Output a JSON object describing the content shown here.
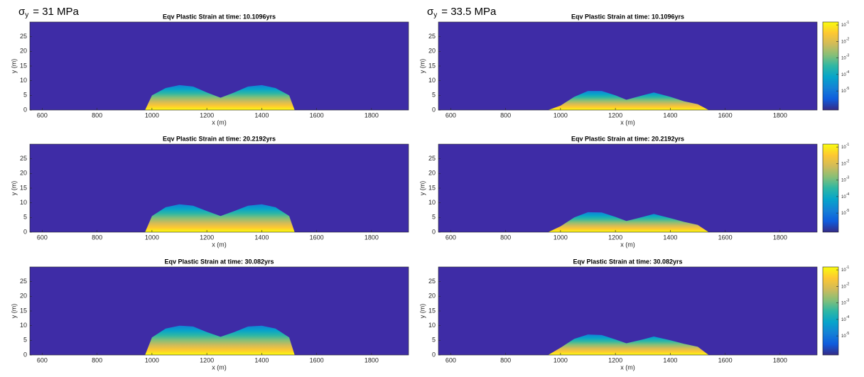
{
  "chart_data": [
    {
      "type": "area",
      "annotation": {
        "symbol": "σ",
        "subscript": "y",
        "text": "= 31 MPa"
      },
      "title": "Eqv Plastic Strain at time: 10.1096yrs",
      "xlabel": "x (m)",
      "ylabel": "y (m)",
      "x": [
        975,
        1000,
        1050,
        1100,
        1150,
        1200,
        1250,
        1300,
        1350,
        1400,
        1450,
        1500,
        1520
      ],
      "values": [
        0,
        5,
        7.5,
        8.5,
        8,
        6,
        4.2,
        6,
        8,
        8.5,
        7.5,
        5,
        0
      ],
      "xlim": [
        555,
        1935
      ],
      "ylim": [
        0,
        30
      ],
      "xticks": [
        600,
        800,
        1000,
        1200,
        1400,
        1600,
        1800
      ],
      "yticks": [
        0,
        5,
        10,
        15,
        20,
        25
      ]
    },
    {
      "type": "area",
      "annotation": {
        "symbol": "σ",
        "subscript": "y",
        "text": "= 33.5 MPa"
      },
      "title": "Eqv Plastic Strain at time: 10.1096yrs",
      "xlabel": "x (m)",
      "ylabel": "y (m)",
      "x": [
        955,
        1000,
        1050,
        1100,
        1150,
        1200,
        1240,
        1300,
        1340,
        1400,
        1450,
        1500,
        1540
      ],
      "values": [
        0,
        1.5,
        4.5,
        6.5,
        6.5,
        5,
        3.5,
        5,
        6,
        4.5,
        3,
        2,
        0
      ],
      "xlim": [
        555,
        1935
      ],
      "ylim": [
        0,
        30
      ],
      "xticks": [
        600,
        800,
        1000,
        1200,
        1400,
        1600,
        1800
      ],
      "yticks": [
        0,
        5,
        10,
        15,
        20,
        25
      ],
      "clim": [
        7e-07,
        0.15
      ],
      "cticks": [
        {
          "value": 0.1,
          "label": "10",
          "exponent": "-1"
        },
        {
          "value": 0.01,
          "label": "10",
          "exponent": "-2"
        },
        {
          "value": 0.001,
          "label": "10",
          "exponent": "-3"
        },
        {
          "value": 0.0001,
          "label": "10",
          "exponent": "-4"
        },
        {
          "value": 1e-05,
          "label": "10",
          "exponent": "-5"
        }
      ]
    },
    {
      "type": "area",
      "title": "Eqv Plastic Strain at time: 20.2192yrs",
      "xlabel": "x (m)",
      "ylabel": "y (m)",
      "x": [
        975,
        1000,
        1050,
        1100,
        1150,
        1200,
        1250,
        1300,
        1350,
        1400,
        1450,
        1500,
        1520
      ],
      "values": [
        0,
        5.5,
        8.5,
        9.5,
        9,
        7.2,
        5.5,
        7.2,
        9,
        9.5,
        8.5,
        5.5,
        0
      ],
      "xlim": [
        555,
        1935
      ],
      "ylim": [
        0,
        30
      ],
      "xticks": [
        600,
        800,
        1000,
        1200,
        1400,
        1600,
        1800
      ],
      "yticks": [
        0,
        5,
        10,
        15,
        20,
        25
      ]
    },
    {
      "type": "area",
      "title": "Eqv Plastic Strain at time: 20.2192yrs",
      "xlabel": "x (m)",
      "ylabel": "y (m)",
      "x": [
        955,
        1000,
        1050,
        1100,
        1150,
        1200,
        1240,
        1300,
        1340,
        1400,
        1450,
        1500,
        1540
      ],
      "values": [
        0,
        2,
        5,
        6.8,
        6.7,
        5.2,
        3.8,
        5.2,
        6.2,
        4.8,
        3.5,
        2.5,
        0
      ],
      "xlim": [
        555,
        1935
      ],
      "ylim": [
        0,
        30
      ],
      "xticks": [
        600,
        800,
        1000,
        1200,
        1400,
        1600,
        1800
      ],
      "yticks": [
        0,
        5,
        10,
        15,
        20,
        25
      ],
      "clim": [
        7e-07,
        0.15
      ],
      "cticks": [
        {
          "value": 0.1,
          "label": "10",
          "exponent": "-1"
        },
        {
          "value": 0.01,
          "label": "10",
          "exponent": "-2"
        },
        {
          "value": 0.001,
          "label": "10",
          "exponent": "-3"
        },
        {
          "value": 0.0001,
          "label": "10",
          "exponent": "-4"
        },
        {
          "value": 1e-05,
          "label": "10",
          "exponent": "-5"
        }
      ]
    },
    {
      "type": "area",
      "title": "Eqv Plastic Strain at time: 30.082yrs",
      "xlabel": "x (m)",
      "ylabel": "y (m)",
      "x": [
        975,
        1000,
        1050,
        1100,
        1150,
        1200,
        1250,
        1300,
        1350,
        1400,
        1450,
        1500,
        1520
      ],
      "values": [
        0,
        6,
        9,
        10,
        9.7,
        7.8,
        6.2,
        7.8,
        9.7,
        10,
        9,
        6,
        0
      ],
      "xlim": [
        555,
        1935
      ],
      "ylim": [
        0,
        30
      ],
      "xticks": [
        600,
        800,
        1000,
        1200,
        1400,
        1600,
        1800
      ],
      "yticks": [
        0,
        5,
        10,
        15,
        20,
        25
      ]
    },
    {
      "type": "area",
      "title": "Eqv Plastic Strain at time: 30.082yrs",
      "xlabel": "x (m)",
      "ylabel": "y (m)",
      "x": [
        955,
        1000,
        1050,
        1100,
        1150,
        1200,
        1240,
        1300,
        1340,
        1400,
        1450,
        1500,
        1540
      ],
      "values": [
        0,
        2.5,
        5.5,
        7,
        6.8,
        5.3,
        4,
        5.3,
        6.3,
        5,
        3.8,
        2.8,
        0
      ],
      "xlim": [
        555,
        1935
      ],
      "ylim": [
        0,
        30
      ],
      "xticks": [
        600,
        800,
        1000,
        1200,
        1400,
        1600,
        1800
      ],
      "yticks": [
        0,
        5,
        10,
        15,
        20,
        25
      ],
      "clim": [
        7e-07,
        0.15
      ],
      "cticks": [
        {
          "value": 0.1,
          "label": "10",
          "exponent": "-1"
        },
        {
          "value": 0.01,
          "label": "10",
          "exponent": "-2"
        },
        {
          "value": 0.001,
          "label": "10",
          "exponent": "-3"
        },
        {
          "value": 0.0001,
          "label": "10",
          "exponent": "-4"
        },
        {
          "value": 1e-05,
          "label": "10",
          "exponent": "-5"
        }
      ]
    }
  ],
  "background": "#3e2ca6",
  "colormap": [
    "#352a87",
    "#0f5cdd",
    "#1481d6",
    "#06a4ca",
    "#2eb7a4",
    "#87bf77",
    "#d1bb59",
    "#fec832",
    "#f9fb0e"
  ]
}
